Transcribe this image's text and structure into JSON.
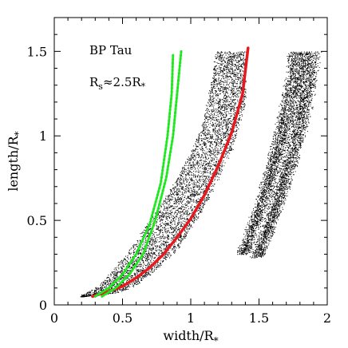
{
  "chart_data": {
    "type": "scatter",
    "xlabel": "width/R",
    "xlabel_sub": "*",
    "ylabel": "length/R",
    "ylabel_sub": "*",
    "xlim": [
      0,
      2
    ],
    "ylim": [
      0,
      1.7
    ],
    "x_major_ticks": [
      0,
      0.5,
      1,
      1.5,
      2
    ],
    "x_tick_labels": [
      "0",
      "0.5",
      "1",
      "1.5",
      "2"
    ],
    "y_major_ticks": [
      0,
      0.5,
      1,
      1.5
    ],
    "y_tick_labels": [
      "0",
      "0.5",
      "1",
      "1.5"
    ],
    "minor_tick_step_x": 0.1,
    "minor_tick_step_y": 0.1,
    "grid": false,
    "legend": "none",
    "annotations": {
      "star": "BP Tau",
      "radius_prefix": "R",
      "radius_sub": "s",
      "radius_suffix": "≈2.5R",
      "radius_suffix_sub": "*"
    },
    "series": [
      {
        "style": "black scatter (cloud)",
        "color": "#000000",
        "envelope_lower": [
          [
            0.2,
            0.05
          ],
          [
            0.35,
            0.06
          ],
          [
            0.5,
            0.08
          ],
          [
            0.6,
            0.12
          ],
          [
            0.7,
            0.18
          ],
          [
            0.8,
            0.25
          ],
          [
            0.9,
            0.33
          ],
          [
            1.0,
            0.45
          ],
          [
            1.1,
            0.58
          ],
          [
            1.2,
            0.75
          ],
          [
            1.3,
            0.92
          ],
          [
            1.35,
            1.05
          ],
          [
            1.4,
            1.2
          ]
        ],
        "envelope_upper": [
          [
            0.2,
            0.06
          ],
          [
            0.3,
            0.1
          ],
          [
            0.4,
            0.18
          ],
          [
            0.5,
            0.28
          ],
          [
            0.6,
            0.38
          ],
          [
            0.7,
            0.5
          ],
          [
            0.8,
            0.62
          ],
          [
            0.9,
            0.75
          ],
          [
            1.0,
            0.9
          ],
          [
            1.08,
            1.05
          ],
          [
            1.12,
            1.2
          ],
          [
            1.16,
            1.35
          ],
          [
            1.18,
            1.5
          ]
        ]
      },
      {
        "style": "black scatter (right band 1)",
        "color": "#000000",
        "points": [
          [
            1.38,
            0.3
          ],
          [
            1.45,
            0.45
          ],
          [
            1.52,
            0.6
          ],
          [
            1.58,
            0.75
          ],
          [
            1.63,
            0.9
          ],
          [
            1.68,
            1.05
          ],
          [
            1.72,
            1.2
          ],
          [
            1.76,
            1.35
          ],
          [
            1.78,
            1.5
          ]
        ]
      },
      {
        "style": "black scatter (right band 2)",
        "color": "#000000",
        "points": [
          [
            1.48,
            0.28
          ],
          [
            1.55,
            0.42
          ],
          [
            1.62,
            0.58
          ],
          [
            1.68,
            0.72
          ],
          [
            1.74,
            0.88
          ],
          [
            1.79,
            1.03
          ],
          [
            1.83,
            1.2
          ],
          [
            1.86,
            1.35
          ],
          [
            1.88,
            1.5
          ]
        ]
      },
      {
        "style": "red line",
        "color": "#e8181f",
        "points": [
          [
            0.28,
            0.05
          ],
          [
            0.4,
            0.08
          ],
          [
            0.5,
            0.11
          ],
          [
            0.6,
            0.16
          ],
          [
            0.7,
            0.22
          ],
          [
            0.8,
            0.3
          ],
          [
            0.9,
            0.4
          ],
          [
            1.0,
            0.51
          ],
          [
            1.1,
            0.65
          ],
          [
            1.2,
            0.82
          ],
          [
            1.3,
            1.02
          ],
          [
            1.38,
            1.25
          ],
          [
            1.42,
            1.52
          ]
        ]
      },
      {
        "style": "green dotted line (left)",
        "color": "#1ee81e",
        "points": [
          [
            0.3,
            0.05
          ],
          [
            0.4,
            0.1
          ],
          [
            0.5,
            0.18
          ],
          [
            0.6,
            0.3
          ],
          [
            0.7,
            0.48
          ],
          [
            0.78,
            0.72
          ],
          [
            0.83,
            1.0
          ],
          [
            0.86,
            1.25
          ],
          [
            0.87,
            1.48
          ]
        ]
      },
      {
        "style": "green dotted line (right)",
        "color": "#1ee81e",
        "points": [
          [
            0.35,
            0.05
          ],
          [
            0.45,
            0.1
          ],
          [
            0.55,
            0.18
          ],
          [
            0.65,
            0.3
          ],
          [
            0.74,
            0.5
          ],
          [
            0.82,
            0.75
          ],
          [
            0.87,
            1.0
          ],
          [
            0.9,
            1.25
          ],
          [
            0.93,
            1.5
          ]
        ]
      }
    ]
  }
}
